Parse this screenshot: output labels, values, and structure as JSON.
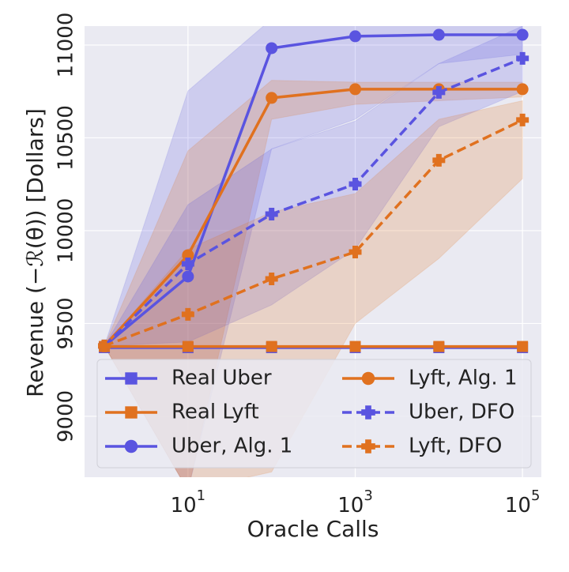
{
  "chart_data": {
    "type": "line",
    "x_label": "Oracle Calls",
    "y_label": "Revenue (−ℛ(θ)) [Dollars]",
    "x": [
      1,
      10,
      100,
      1000,
      10000,
      100000
    ],
    "xscale": "log",
    "xlim": [
      0.58,
      168000
    ],
    "ylim": [
      8672,
      11102
    ],
    "xticks": [
      {
        "value": 10,
        "label": "10^1"
      },
      {
        "value": 1000,
        "label": "10^3"
      },
      {
        "value": 100000,
        "label": "10^5"
      }
    ],
    "yticks": [
      9000,
      9500,
      10000,
      10500,
      11000
    ],
    "grid": true,
    "legend_columns": 2,
    "legend": "lower right",
    "series": [
      {
        "name": "Real Uber",
        "color": "#5a54e0",
        "marker": "square",
        "linestyle": "solid",
        "values": [
          9370,
          9370,
          9370,
          9370,
          9370,
          9370
        ]
      },
      {
        "name": "Real Lyft",
        "color": "#e0711f",
        "marker": "square",
        "linestyle": "solid",
        "values": [
          9376,
          9376,
          9376,
          9376,
          9376,
          9376
        ]
      },
      {
        "name": "Uber, Alg. 1",
        "color": "#5a54e0",
        "marker": "circle",
        "linestyle": "solid",
        "values": [
          9379,
          9753,
          10983,
          11047,
          11055,
          11055
        ],
        "lower": [
          9379,
          8600,
          10440,
          10600,
          10900,
          10950
        ],
        "upper": [
          9379,
          10753,
          11140,
          11140,
          11140,
          11140
        ]
      },
      {
        "name": "Lyft, Alg. 1",
        "color": "#e0711f",
        "marker": "circle",
        "linestyle": "solid",
        "values": [
          9379,
          9868,
          10715,
          10762,
          10762,
          10762
        ],
        "lower": [
          9379,
          8600,
          10600,
          10680,
          10700,
          10720
        ],
        "upper": [
          9379,
          10430,
          10810,
          10800,
          10800,
          10800
        ]
      },
      {
        "name": "Uber, DFO",
        "color": "#5a54e0",
        "marker": "plus",
        "linestyle": "dashed",
        "values": [
          9379,
          9821,
          10089,
          10251,
          10745,
          10928
        ],
        "lower": [
          9379,
          9400,
          9600,
          9900,
          10560,
          10750
        ],
        "upper": [
          9379,
          10140,
          10440,
          10590,
          10900,
          11102
        ]
      },
      {
        "name": "Lyft, DFO",
        "color": "#e0711f",
        "marker": "plus",
        "linestyle": "dashed",
        "values": [
          9379,
          9549,
          9740,
          9885,
          10379,
          10596
        ],
        "lower": [
          9379,
          8600,
          8700,
          9500,
          9850,
          10280
        ],
        "upper": [
          9379,
          9900,
          10100,
          10200,
          10600,
          10700
        ]
      }
    ]
  }
}
